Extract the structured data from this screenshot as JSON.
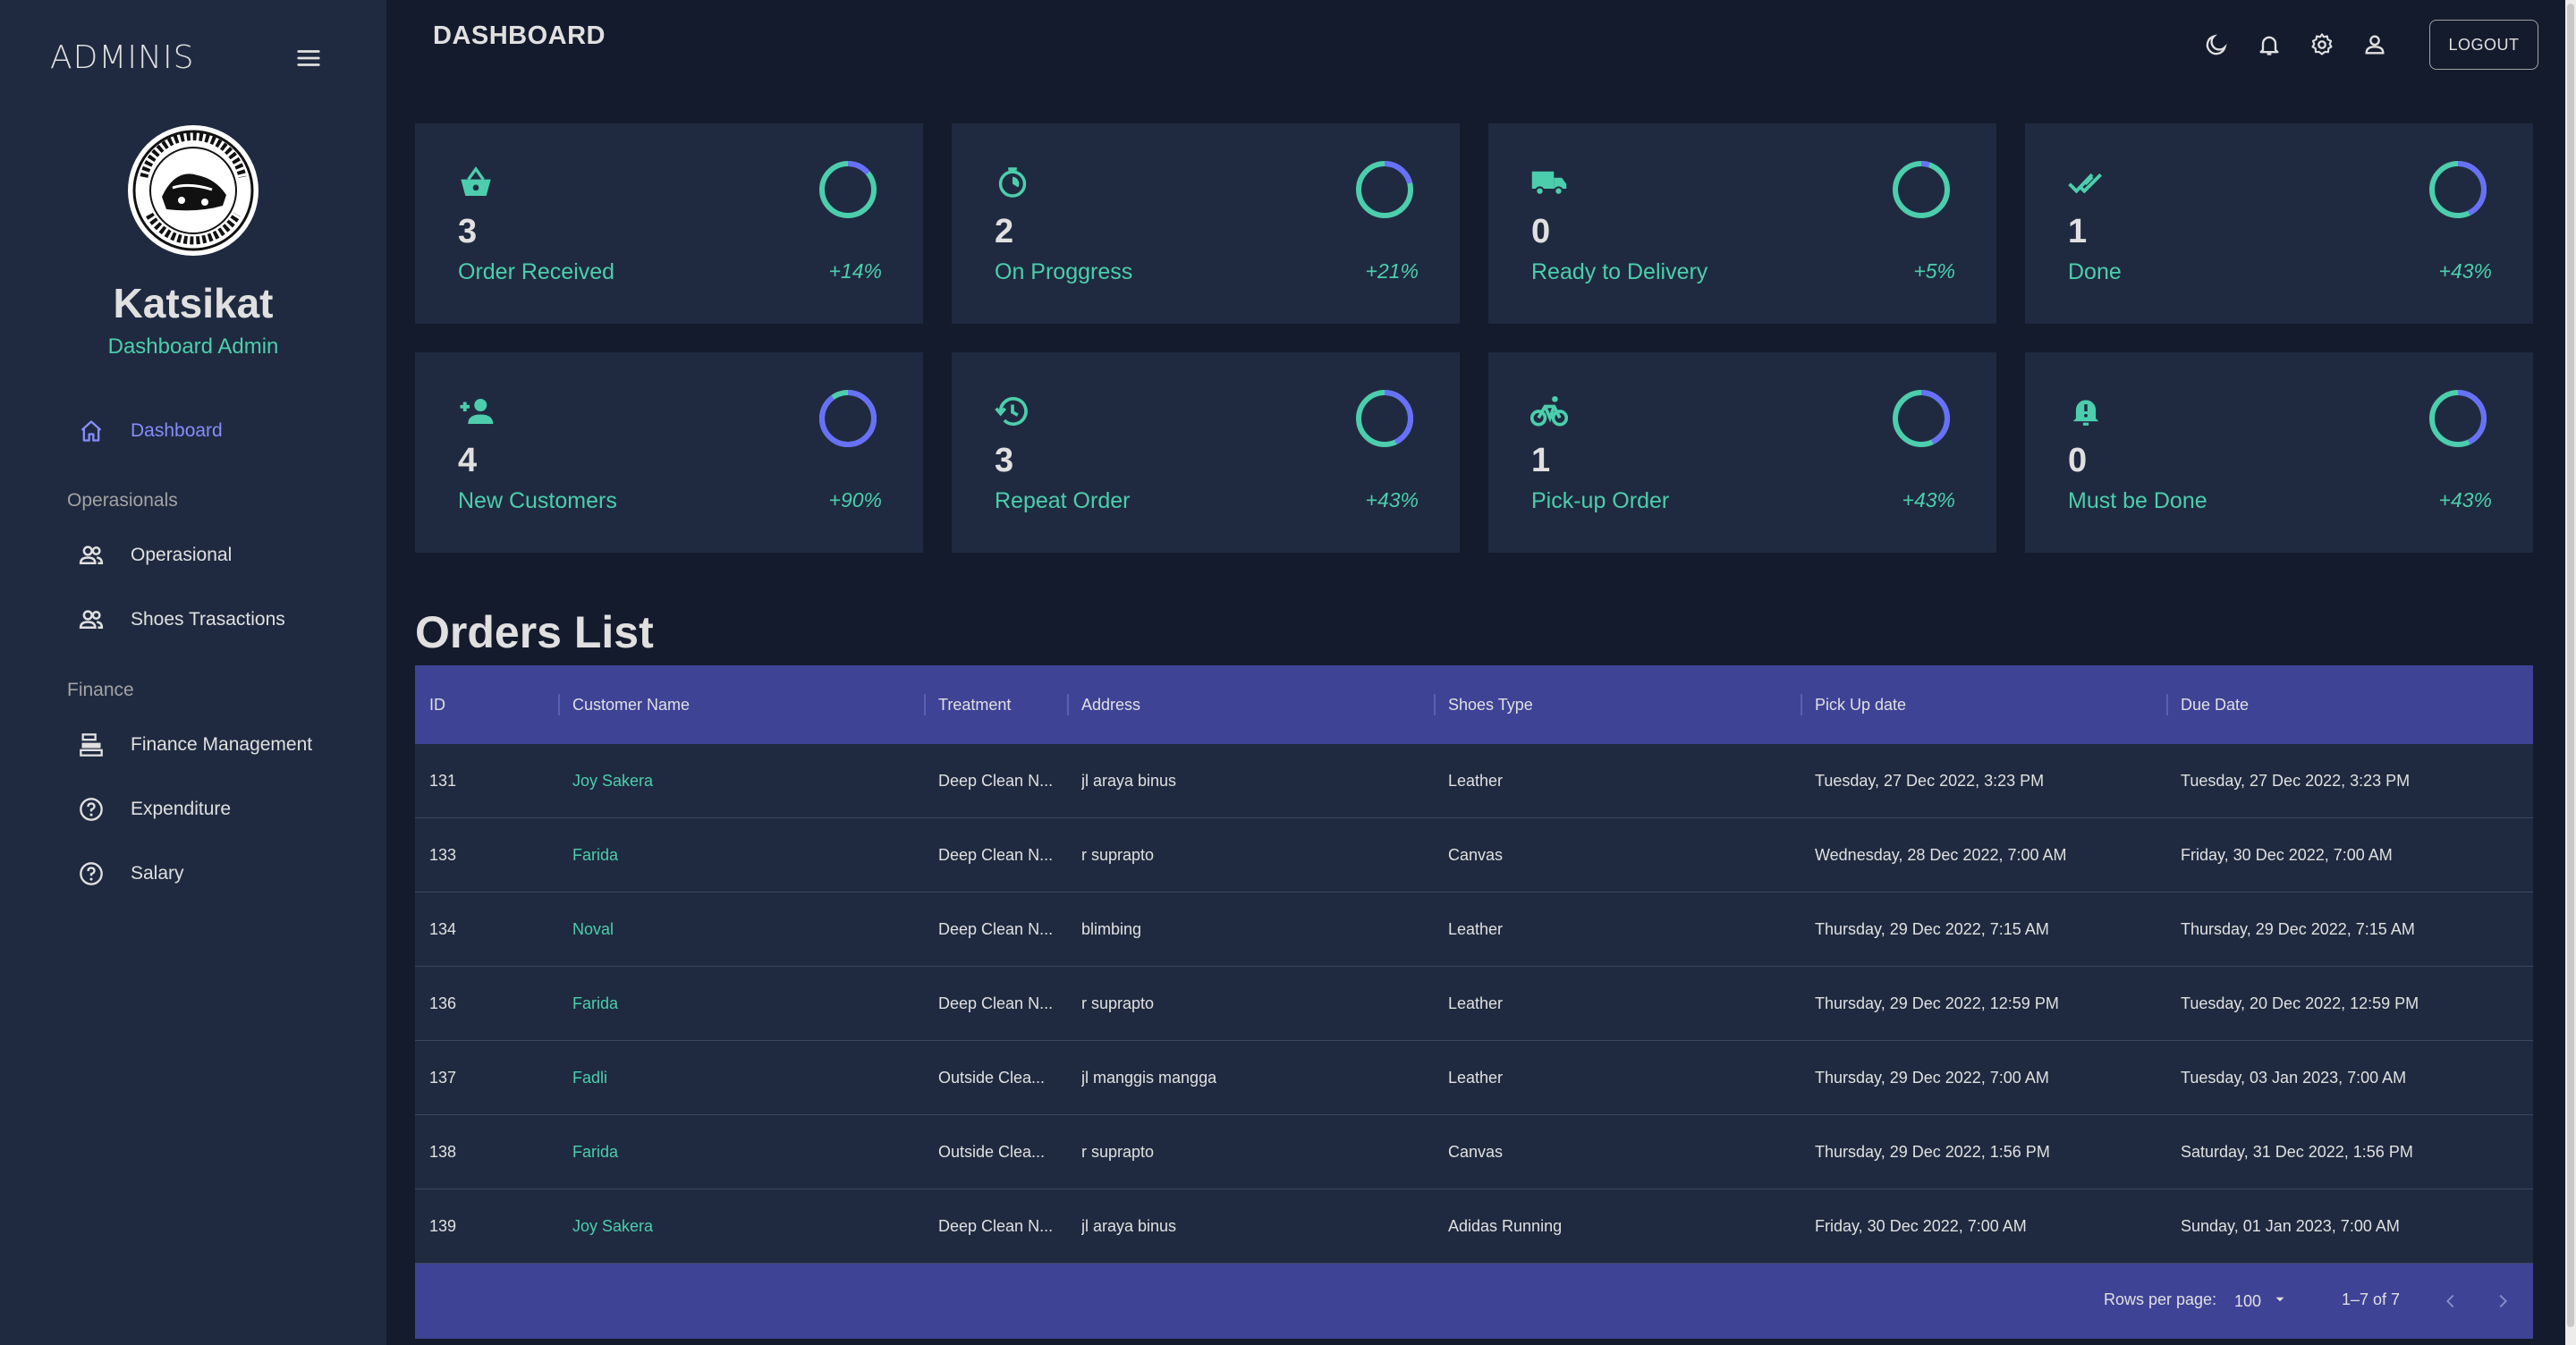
{
  "sidebar": {
    "brand": "ADMINIS",
    "user_name": "Katsikat",
    "user_role": "Dashboard Admin",
    "nav": [
      {
        "label": "Dashboard",
        "icon": "home-icon",
        "active": true
      },
      {
        "section": "Operasionals"
      },
      {
        "label": "Operasional",
        "icon": "people-icon"
      },
      {
        "label": "Shoes Trasactions",
        "icon": "people-icon"
      },
      {
        "section": "Finance"
      },
      {
        "label": "Finance Management",
        "icon": "cash-register-icon"
      },
      {
        "label": "Expenditure",
        "icon": "help-circle-icon"
      },
      {
        "label": "Salary",
        "icon": "help-circle-icon"
      }
    ]
  },
  "header": {
    "title": "DASHBOARD",
    "logout_label": "LOGOUT"
  },
  "stats": [
    {
      "value": "3",
      "label": "Order Received",
      "change": "+14%",
      "icon": "basket-icon",
      "progress": 0.14
    },
    {
      "value": "2",
      "label": "On Proggress",
      "change": "+21%",
      "icon": "timelapse-icon",
      "progress": 0.21
    },
    {
      "value": "0",
      "label": "Ready to Delivery",
      "change": "+5%",
      "icon": "truck-icon",
      "progress": 0.05
    },
    {
      "value": "1",
      "label": "Done",
      "change": "+43%",
      "icon": "done-all-icon",
      "progress": 0.43
    },
    {
      "value": "4",
      "label": "New Customers",
      "change": "+90%",
      "icon": "person-add-icon",
      "progress": 0.9
    },
    {
      "value": "3",
      "label": "Repeat Order",
      "change": "+43%",
      "icon": "history-icon",
      "progress": 0.43
    },
    {
      "value": "1",
      "label": "Pick-up Order",
      "change": "+43%",
      "icon": "bike-icon",
      "progress": 0.43
    },
    {
      "value": "0",
      "label": "Must be Done",
      "change": "+43%",
      "icon": "bell-alert-icon",
      "progress": 0.43
    }
  ],
  "orders": {
    "title": "Orders List",
    "columns": [
      "ID",
      "Customer Name",
      "Treatment",
      "Address",
      "Shoes Type",
      "Pick Up date",
      "Due Date"
    ],
    "rows": [
      [
        "131",
        "Joy Sakera",
        "Deep Clean N...",
        "jl araya binus",
        "Leather",
        "Tuesday, 27 Dec 2022, 3:23 PM",
        "Tuesday, 27 Dec 2022, 3:23 PM"
      ],
      [
        "133",
        "Farida",
        "Deep Clean N...",
        "r suprapto",
        "Canvas",
        "Wednesday, 28 Dec 2022, 7:00 AM",
        "Friday, 30 Dec 2022, 7:00 AM"
      ],
      [
        "134",
        "Noval",
        "Deep Clean N...",
        "blimbing",
        "Leather",
        "Thursday, 29 Dec 2022, 7:15 AM",
        "Thursday, 29 Dec 2022, 7:15 AM"
      ],
      [
        "136",
        "Farida",
        "Deep Clean N...",
        "r suprapto",
        "Leather",
        "Thursday, 29 Dec 2022, 12:59 PM",
        "Tuesday, 20 Dec 2022, 12:59 PM"
      ],
      [
        "137",
        "Fadli",
        "Outside Clea...",
        "jl manggis mangga",
        "Leather",
        "Thursday, 29 Dec 2022, 7:00 AM",
        "Tuesday, 03 Jan 2023, 7:00 AM"
      ],
      [
        "138",
        "Farida",
        "Outside Clea...",
        "r suprapto",
        "Canvas",
        "Thursday, 29 Dec 2022, 1:56 PM",
        "Saturday, 31 Dec 2022, 1:56 PM"
      ],
      [
        "139",
        "Joy Sakera",
        "Deep Clean N...",
        "jl araya binus",
        "Adidas Running",
        "Friday, 30 Dec 2022, 7:00 AM",
        "Sunday, 01 Jan 2023, 7:00 AM"
      ]
    ],
    "footer": {
      "rows_per_page_label": "Rows per page:",
      "rows_per_page": "100",
      "page_info": "1–7 of 7"
    }
  },
  "colors": {
    "background": "#141b2d",
    "panel": "#1f2a40",
    "accent_green": "#4cceac",
    "accent_blue": "#868dfb",
    "table_header": "#3e4396"
  }
}
